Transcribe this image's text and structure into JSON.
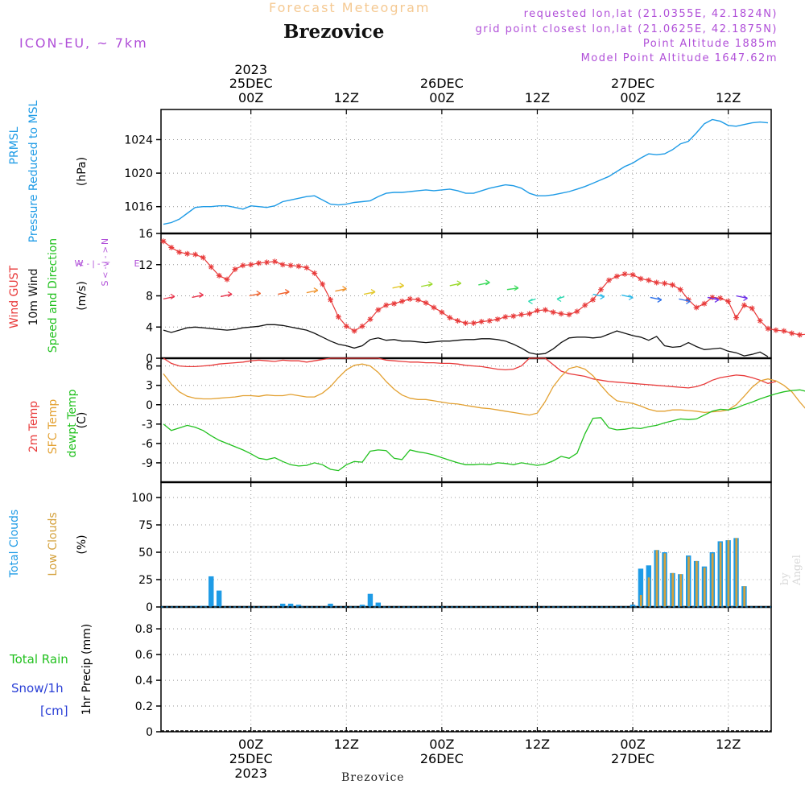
{
  "header": {
    "chart_type_label": "Forecast Meteogram",
    "location": "Brezovice",
    "model": "ICON-EU, ~ 7km",
    "requested": "requested lon,lat (21.0355E, 42.1824N)",
    "grid_point": "grid point closest lon,lat (21.0625E, 42.1875N)",
    "point_altitude": "Point Altitude 1885m",
    "model_altitude": "Model Point Altitude 1647.62m",
    "credit": "by Angel",
    "bottom_location": "Brezovice"
  },
  "colors": {
    "pressure": "#1e9be6",
    "gust": "#e83a3a",
    "wind": "#111111",
    "temp2m": "#e83a3a",
    "sfc_temp": "#e3a132",
    "dewpt": "#22c11f",
    "total_clouds": "#1e9be6",
    "low_clouds": "#d4a13c",
    "rain": "#22c11f",
    "snow": "#2a3fd6",
    "accent": "#b04fd8"
  },
  "time_axis": {
    "top_year": "2023",
    "labels": [
      {
        "t": 0,
        "day": "25DEC",
        "hour": "00Z",
        "year": "2023"
      },
      {
        "t": 12,
        "day": "",
        "hour": "12Z",
        "year": ""
      },
      {
        "t": 24,
        "day": "26DEC",
        "hour": "00Z",
        "year": ""
      },
      {
        "t": 36,
        "day": "",
        "hour": "12Z",
        "year": ""
      },
      {
        "t": 48,
        "day": "27DEC",
        "hour": "00Z",
        "year": ""
      },
      {
        "t": 60,
        "day": "",
        "hour": "12Z",
        "year": ""
      }
    ],
    "range_hours": [
      -11.3,
      65.4
    ]
  },
  "chart_data": [
    {
      "type": "line",
      "panel": "pressure",
      "ylabel_lines": [
        "PRMSL",
        "Pressure Reduced to MSL"
      ],
      "units": "(hPa)",
      "ylim": [
        1012.8,
        1027.6
      ],
      "yticks": [
        "1016",
        "1020",
        "1024"
      ],
      "x_hours": [
        -11,
        -10,
        -9,
        -8,
        -7,
        -6,
        -5,
        -4,
        -3,
        -2,
        -1,
        0,
        1,
        2,
        3,
        4,
        5,
        6,
        7,
        8,
        9,
        10,
        11,
        12,
        13,
        14,
        15,
        16,
        17,
        18,
        19,
        20,
        21,
        22,
        23,
        24,
        25,
        26,
        27,
        28,
        29,
        30,
        31,
        32,
        33,
        34,
        35,
        36,
        37,
        38,
        39,
        40,
        41,
        42,
        43,
        44,
        45,
        46,
        47,
        48,
        49,
        50,
        51,
        52,
        53,
        54,
        55,
        56,
        57,
        58,
        59,
        60,
        61,
        62,
        63,
        64,
        65
      ],
      "series": [
        {
          "name": "PRMSL",
          "values": [
            1013.9,
            1014.1,
            1014.5,
            1015.2,
            1015.9,
            1016.0,
            1016.0,
            1016.1,
            1016.1,
            1015.9,
            1015.7,
            1016.1,
            1016.0,
            1015.9,
            1016.1,
            1016.6,
            1016.8,
            1017.0,
            1017.2,
            1017.3,
            1016.8,
            1016.3,
            1016.2,
            1016.3,
            1016.5,
            1016.6,
            1016.7,
            1017.2,
            1017.6,
            1017.7,
            1017.7,
            1017.8,
            1017.9,
            1018.0,
            1017.9,
            1018.0,
            1018.1,
            1017.9,
            1017.6,
            1017.6,
            1017.9,
            1018.2,
            1018.4,
            1018.6,
            1018.5,
            1018.2,
            1017.6,
            1017.3,
            1017.3,
            1017.4,
            1017.6,
            1017.8,
            1018.1,
            1018.4,
            1018.8,
            1019.2,
            1019.6,
            1020.2,
            1020.8,
            1021.2,
            1021.8,
            1022.3,
            1022.2,
            1022.3,
            1022.8,
            1023.5,
            1023.8,
            1024.8,
            1025.9,
            1026.4,
            1026.2,
            1025.7,
            1025.6,
            1025.8,
            1026.0,
            1026.1,
            1026.0
          ]
        }
      ]
    },
    {
      "type": "line",
      "panel": "wind",
      "ylabel_lines": [
        "Wind GUST",
        "10m Wind",
        "Speed and Direction"
      ],
      "units": "(m/s)",
      "ylim": [
        0,
        16
      ],
      "yticks": [
        "0",
        "4",
        "8",
        "12",
        "16"
      ],
      "compass": {
        "n": "N",
        "w": "W",
        "e": "E",
        "s": "S"
      },
      "series": [
        {
          "name": "Wind GUST",
          "values": [
            15.0,
            14.2,
            13.6,
            13.4,
            13.3,
            12.9,
            11.7,
            10.6,
            10.1,
            11.4,
            11.9,
            12.0,
            12.2,
            12.3,
            12.4,
            12.0,
            11.9,
            11.8,
            11.6,
            10.9,
            9.5,
            7.5,
            5.3,
            4.1,
            3.5,
            4.1,
            5.0,
            6.2,
            6.8,
            7.0,
            7.3,
            7.6,
            7.5,
            7.1,
            6.5,
            5.9,
            5.2,
            4.8,
            4.5,
            4.5,
            4.7,
            4.8,
            5.0,
            5.3,
            5.4,
            5.6,
            5.7,
            6.1,
            6.2,
            5.9,
            5.7,
            5.6,
            6.0,
            6.8,
            7.5,
            8.8,
            10.0,
            10.5,
            10.8,
            10.7,
            10.2,
            10.0,
            9.7,
            9.6,
            9.4,
            8.8,
            7.5,
            6.5,
            7.0,
            7.8,
            7.7,
            7.3,
            5.2,
            6.8,
            6.4,
            4.8,
            3.8,
            3.6,
            3.5,
            3.2,
            3.0,
            3.1,
            3.0,
            3.9,
            3.8
          ]
        },
        {
          "name": "10m Wind",
          "values": [
            3.6,
            3.3,
            3.6,
            3.9,
            4.0,
            3.9,
            3.8,
            3.7,
            3.6,
            3.7,
            3.9,
            4.0,
            4.1,
            4.3,
            4.3,
            4.2,
            4.0,
            3.8,
            3.6,
            3.2,
            2.7,
            2.2,
            1.8,
            1.6,
            1.3,
            1.6,
            2.4,
            2.6,
            2.3,
            2.4,
            2.2,
            2.2,
            2.1,
            2.0,
            2.1,
            2.2,
            2.2,
            2.3,
            2.4,
            2.4,
            2.5,
            2.5,
            2.4,
            2.2,
            1.8,
            1.3,
            0.7,
            0.5,
            0.6,
            1.2,
            2.0,
            2.6,
            2.7,
            2.7,
            2.6,
            2.7,
            3.1,
            3.5,
            3.2,
            2.9,
            2.7,
            2.3,
            2.8,
            1.6,
            1.4,
            1.5,
            2.0,
            1.5,
            1.1,
            1.2,
            1.3,
            0.9,
            0.7,
            0.3,
            0.5,
            0.8,
            0.2
          ]
        },
        {
          "name": "Speed and Direction",
          "values": [
            7.6,
            7.8,
            7.9,
            8.0,
            8.2,
            8.4,
            8.6,
            8.2,
            9.0,
            9.2,
            9.3,
            9.4,
            8.8,
            7.6,
            7.9,
            8.2,
            8.1,
            7.8,
            7.6,
            7.8,
            8.0
          ]
        }
      ]
    },
    {
      "type": "line",
      "panel": "temperature",
      "ylabel_lines": [
        "2m Temp",
        "SFC Temp",
        "dewpt Temp"
      ],
      "units": "(C)",
      "ylim": [
        -12,
        7.2
      ],
      "yticks": [
        "-9",
        "-6",
        "-3",
        "0",
        "3",
        "6"
      ],
      "series": [
        {
          "name": "2m Temp",
          "values": [
            7.2,
            6.4,
            6.0,
            5.9,
            5.9,
            6.0,
            6.1,
            6.3,
            6.4,
            6.5,
            6.6,
            6.8,
            6.9,
            6.8,
            6.7,
            6.9,
            6.8,
            6.8,
            6.6,
            6.8,
            7.0,
            7.2,
            7.2,
            7.2,
            7.2,
            7.2,
            7.2,
            7.2,
            6.9,
            6.8,
            6.7,
            6.6,
            6.6,
            6.5,
            6.5,
            6.4,
            6.4,
            6.3,
            6.1,
            6.0,
            5.9,
            5.7,
            5.5,
            5.4,
            5.5,
            6.0,
            7.2,
            7.2,
            7.2,
            6.2,
            5.2,
            4.8,
            4.6,
            4.4,
            4.0,
            3.8,
            3.6,
            3.5,
            3.4,
            3.3,
            3.2,
            3.1,
            3.0,
            2.9,
            2.8,
            2.7,
            2.6,
            2.8,
            3.2,
            3.8,
            4.2,
            4.4,
            4.6,
            4.5,
            4.2,
            3.8,
            3.3,
            3.6
          ]
        },
        {
          "name": "SFC Temp",
          "values": [
            4.8,
            3.2,
            2.0,
            1.3,
            1.0,
            0.9,
            0.9,
            1.0,
            1.1,
            1.2,
            1.4,
            1.4,
            1.3,
            1.5,
            1.4,
            1.4,
            1.6,
            1.4,
            1.2,
            1.2,
            1.8,
            2.8,
            4.2,
            5.4,
            6.1,
            6.3,
            6.0,
            5.0,
            3.6,
            2.4,
            1.5,
            1.0,
            0.8,
            0.8,
            0.6,
            0.4,
            0.2,
            0.1,
            -0.1,
            -0.3,
            -0.5,
            -0.6,
            -0.8,
            -1.0,
            -1.2,
            -1.4,
            -1.6,
            -1.3,
            0.5,
            2.8,
            4.4,
            5.6,
            5.9,
            5.5,
            4.5,
            3.0,
            1.6,
            0.6,
            0.4,
            0.2,
            -0.2,
            -0.7,
            -1.0,
            -1.0,
            -0.8,
            -0.8,
            -0.9,
            -1.0,
            -1.2,
            -1.1,
            -1.0,
            -0.8,
            0.0,
            1.3,
            2.7,
            3.7,
            4.0,
            3.7,
            3.0,
            2.0,
            0.4,
            -1.0,
            -2.0
          ]
        },
        {
          "name": "dewpt Temp",
          "values": [
            -3.0,
            -4.0,
            -3.6,
            -3.2,
            -3.5,
            -4.0,
            -4.8,
            -5.5,
            -6.0,
            -6.5,
            -7.0,
            -7.6,
            -8.3,
            -8.5,
            -8.2,
            -8.8,
            -9.3,
            -9.5,
            -9.4,
            -9.0,
            -9.3,
            -10.0,
            -10.2,
            -9.3,
            -8.8,
            -8.9,
            -7.2,
            -7.0,
            -7.1,
            -8.3,
            -8.5,
            -7.0,
            -7.3,
            -7.5,
            -7.8,
            -8.2,
            -8.6,
            -9.0,
            -9.3,
            -9.3,
            -9.2,
            -9.3,
            -9.0,
            -9.1,
            -9.3,
            -9.0,
            -9.2,
            -9.4,
            -9.2,
            -8.7,
            -8.0,
            -8.3,
            -7.5,
            -4.5,
            -2.1,
            -2.0,
            -3.6,
            -3.9,
            -3.8,
            -3.6,
            -3.7,
            -3.4,
            -3.2,
            -2.8,
            -2.5,
            -2.2,
            -2.3,
            -2.2,
            -1.6,
            -1.0,
            -0.7,
            -0.8,
            -0.5,
            0.0,
            0.4,
            0.9,
            1.3,
            1.7,
            2.0,
            2.2,
            2.3,
            2.0,
            1.2,
            0.1
          ]
        }
      ]
    },
    {
      "type": "bar",
      "panel": "clouds",
      "ylabel_lines": [
        "Total Clouds",
        "Low Clouds"
      ],
      "units": "(%)",
      "ylim": [
        0,
        114
      ],
      "yticks": [
        "0",
        "25",
        "50",
        "75",
        "100"
      ],
      "series": [
        {
          "name": "Total Clouds",
          "values": [
            {
              "h": -7,
              "v": 1
            },
            {
              "h": -6,
              "v": 1
            },
            {
              "h": -5,
              "v": 28
            },
            {
              "h": -4,
              "v": 15
            },
            {
              "h": 4,
              "v": 3
            },
            {
              "h": 5,
              "v": 3
            },
            {
              "h": 6,
              "v": 2
            },
            {
              "h": 10,
              "v": 3
            },
            {
              "h": 14,
              "v": 2
            },
            {
              "h": 15,
              "v": 12
            },
            {
              "h": 16,
              "v": 4
            },
            {
              "h": 48,
              "v": 2
            },
            {
              "h": 49,
              "v": 35
            },
            {
              "h": 50,
              "v": 38
            },
            {
              "h": 51,
              "v": 52
            },
            {
              "h": 52,
              "v": 50
            },
            {
              "h": 53,
              "v": 31
            },
            {
              "h": 54,
              "v": 30
            },
            {
              "h": 55,
              "v": 47
            },
            {
              "h": 56,
              "v": 42
            },
            {
              "h": 57,
              "v": 37
            },
            {
              "h": 58,
              "v": 50
            },
            {
              "h": 59,
              "v": 60
            },
            {
              "h": 60,
              "v": 61
            },
            {
              "h": 61,
              "v": 63
            },
            {
              "h": 62,
              "v": 19
            }
          ]
        },
        {
          "name": "Low Clouds",
          "values": [
            {
              "h": 49,
              "v": 11
            },
            {
              "h": 50,
              "v": 27
            },
            {
              "h": 51,
              "v": 52
            },
            {
              "h": 52,
              "v": 49
            },
            {
              "h": 53,
              "v": 31
            },
            {
              "h": 54,
              "v": 30
            },
            {
              "h": 55,
              "v": 46
            },
            {
              "h": 56,
              "v": 42
            },
            {
              "h": 57,
              "v": 36
            },
            {
              "h": 58,
              "v": 49
            },
            {
              "h": 59,
              "v": 59
            },
            {
              "h": 60,
              "v": 61
            },
            {
              "h": 61,
              "v": 63
            },
            {
              "h": 62,
              "v": 19
            }
          ]
        }
      ]
    },
    {
      "type": "bar",
      "panel": "precip",
      "ylabel_lines": [
        "Total  Rain",
        "Snow/1h",
        "[cm]"
      ],
      "units": "1hr Precip (mm)",
      "ylim": [
        0,
        0.97
      ],
      "yticks": [
        "0",
        "0.2",
        "0.4",
        "0.6",
        "0.8"
      ],
      "series": [
        {
          "name": "Total  Rain",
          "values": []
        },
        {
          "name": "Snow/1h",
          "values": []
        }
      ]
    }
  ]
}
